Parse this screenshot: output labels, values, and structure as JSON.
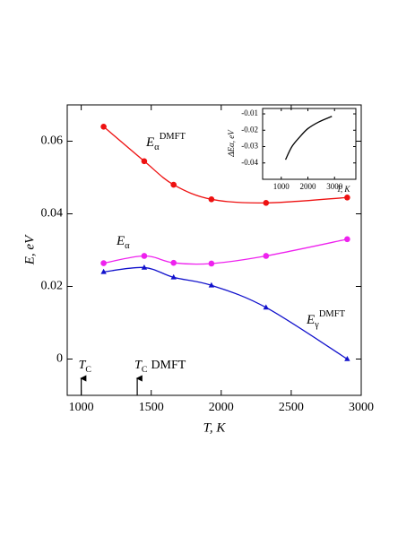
{
  "chart_data": [
    {
      "type": "line",
      "xlabel": "T, K",
      "ylabel": "E, eV",
      "xlim": [
        900,
        3000
      ],
      "xticks": [
        1000,
        1500,
        2000,
        2500,
        3000
      ],
      "ylim": [
        -0.01,
        0.07
      ],
      "yticks": [
        0,
        0.02,
        0.04,
        0.06
      ],
      "x": [
        1160,
        1450,
        1660,
        1930,
        2320,
        2900
      ],
      "series": [
        {
          "name": "E",
          "subscript": "α",
          "superscript": "DMFT",
          "color": "#ee1111",
          "marker": "circle",
          "values": [
            0.064,
            0.0545,
            0.048,
            0.044,
            0.043,
            0.0445
          ]
        },
        {
          "name": "E",
          "subscript": "α",
          "color": "#ee22ee",
          "marker": "circle",
          "values": [
            0.0264,
            0.0284,
            0.0265,
            0.0263,
            0.0284,
            0.033
          ]
        },
        {
          "name": "E",
          "subscript": "γ",
          "superscript": "DMFT",
          "color": "#1111cc",
          "marker": "triangle",
          "values": [
            0.024,
            0.0252,
            0.0225,
            0.0203,
            0.0142,
            0.0
          ]
        }
      ],
      "annotations": [
        {
          "text": "T",
          "subscript": "C",
          "x": 1000
        },
        {
          "text": "T",
          "subscript": "C",
          "suffix": "DMFT",
          "x": 1400
        }
      ]
    },
    {
      "type": "line",
      "xlabel": "T, K",
      "ylabel": "ΔEα, eV",
      "xlim": [
        300,
        3800
      ],
      "xticks": [
        1000,
        2000,
        3000
      ],
      "ylim": [
        -0.05,
        -0.0067
      ],
      "yticks": [
        -0.01,
        -0.02,
        -0.03,
        -0.04
      ],
      "x": [
        1160,
        1400,
        1700,
        2000,
        2400,
        2900
      ],
      "series": [
        {
          "color": "#000000",
          "values": [
            -0.038,
            -0.03,
            -0.024,
            -0.019,
            -0.015,
            -0.0115
          ]
        }
      ]
    }
  ]
}
